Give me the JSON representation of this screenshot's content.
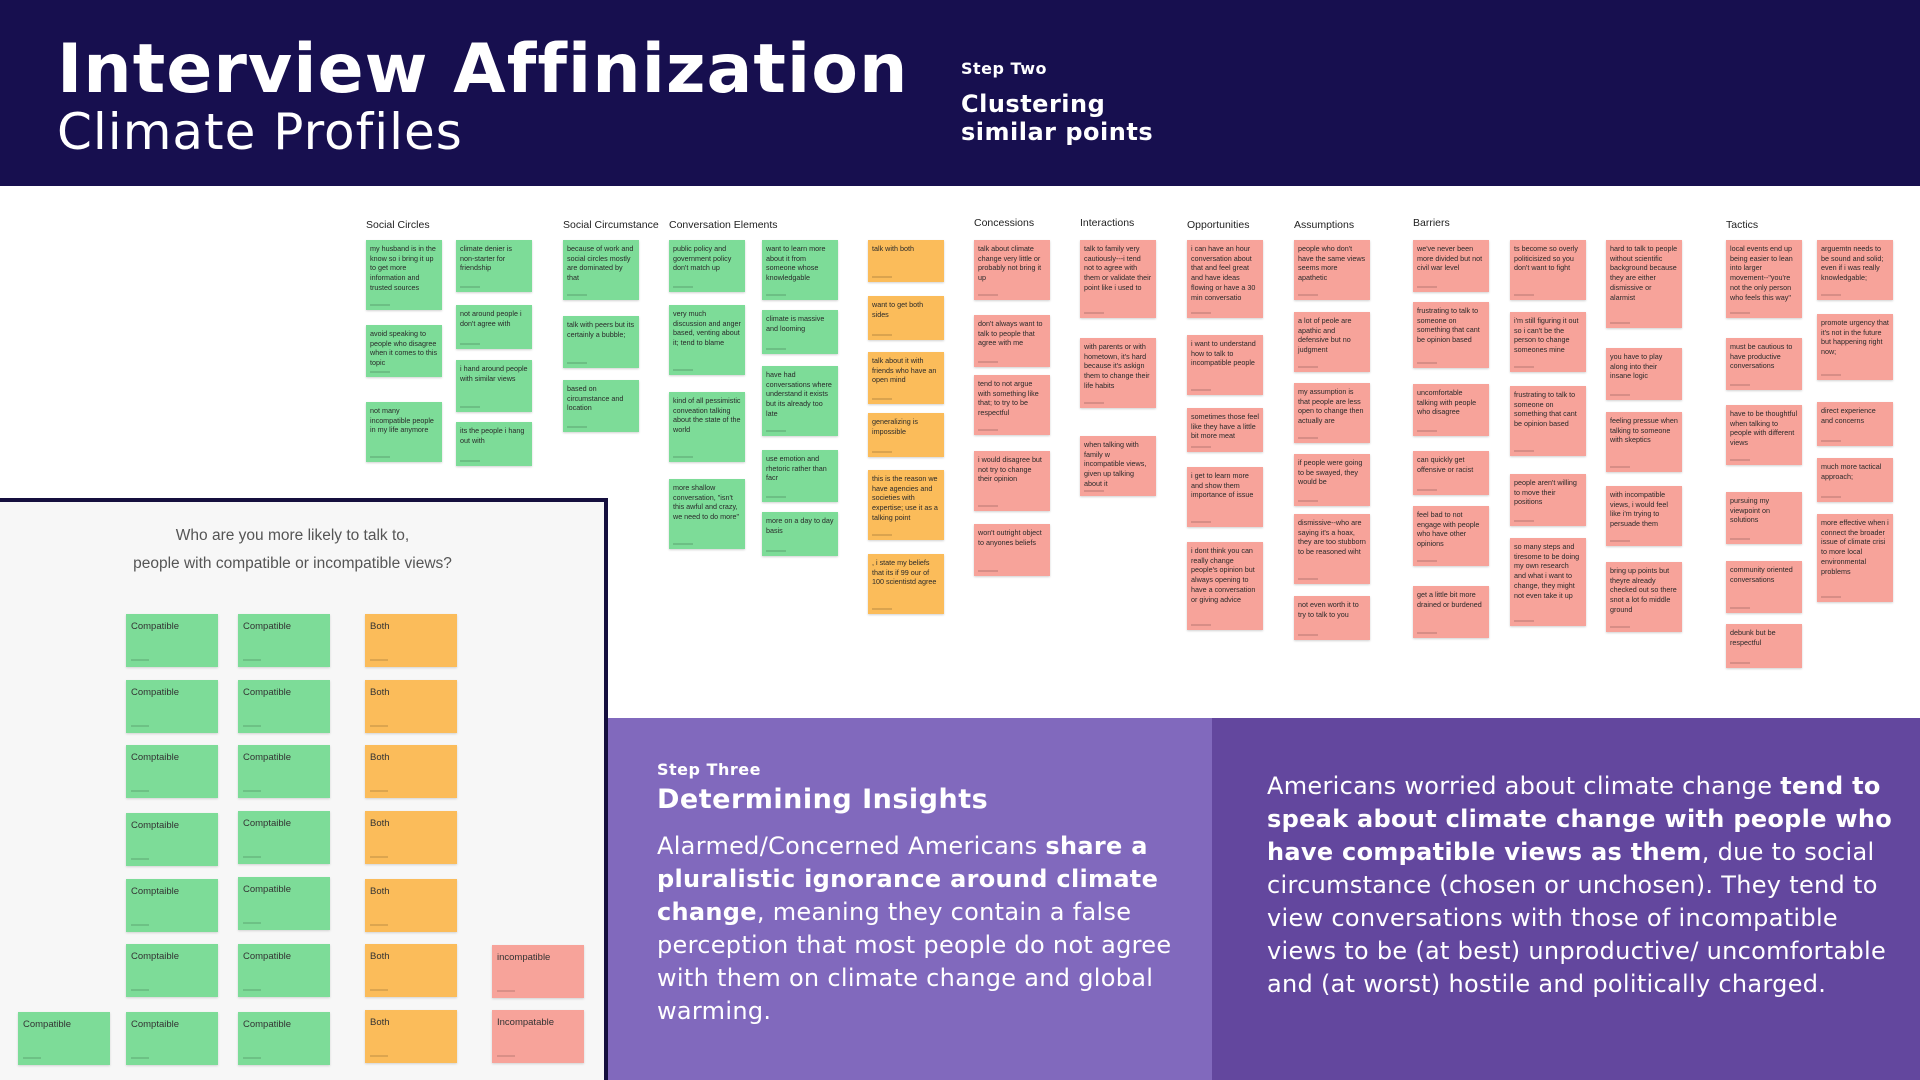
{
  "header": {
    "title": "Interview Affinization",
    "subtitle": "Climate Profiles",
    "step_label": "Step Two",
    "step_title_line1": "Clustering",
    "step_title_line2": "similar points"
  },
  "board": {
    "categories": {
      "social_circles": "Social Circles",
      "social_circumstance": "Social Circumstance",
      "conversation_elements": "Conversation Elements",
      "concessions": "Concessions",
      "interactions": "Interactions",
      "opportunities": "Opportunities",
      "assumptions": "Assumptions",
      "barriers": "Barriers",
      "tactics": "Tactics"
    },
    "notes": {
      "sc1": "my husband is in the know so i bring it up to get more information and trusted sources",
      "sc2": "avoid speaking to people who disagree when it comes to this topic",
      "sc3": "not many incompatible people in my life anymore",
      "sc4": "climate denier is non-starter for friendship",
      "sc5": "not around people i don't agree with",
      "sc6": "i hand around people with similar views",
      "sc7": "its the people i hang out with",
      "scx1": "because of work and social circles mostly are dominated by that",
      "scx2": "talk with peers but its certainly a bubble;",
      "scx3": "based on circumstance and location",
      "ce1": "public policy and government policy don't match up",
      "ce2": "very much discussion and anger based, venting about it; tend to blame",
      "ce3": "kind of all pessimistic conveation talking about the state of the world",
      "ce4": "more shallow conversation, \"isn't this awful and crazy, we need to do more\"",
      "ce5": "want to learn more about it from someone whose knowledgable",
      "ce6": "climate is massive and looming",
      "ce7": "have had conversations where understand it exists but its already too late",
      "ce8": "use emotion and rhetoric rather than facr",
      "ce9": "more on a day to day basis",
      "o1": "talk with both",
      "o2": "want to get both sides",
      "o3": "talk about it with friends who have an open mind",
      "o4": "generalizing is impossible",
      "o5": "this is the reason we have agencies and societies with expertise; use it as a talking point",
      "o6": ", i state my beliefs that its if 99 our of 100 scientistd agree",
      "co1": "talk about climate change very little or probably not bring it up",
      "co2": "don't always want to talk to people that agree with me",
      "co3": "tend to not argue with something like that; to try to be respectful",
      "co4": "i would disagree but not try to change their opinion",
      "co5": "won't outright object to anyones beliefs",
      "in1": "talk to family very cautiously---i tend not to agree with them or validate their point like i used to",
      "in2": "with parents or with hometown, it's hard because it's askign them to change their life habits",
      "in3": "when talking with family w incompatible views, given up talking about it",
      "op1": "i can have an hour conversation about that and feel great and have ideas flowing or have a 30 min conversatio",
      "op2": "i want to understand how to talk to incompatible people",
      "op3": "sometimes those feel like they have a little bit more meat",
      "op4": "i get to learn more and show them importance of issue",
      "op5": "i dont think you can really change people's opinion but always opening to have a conversation or giving advice",
      "as1": "people who don't have the same views seems more apathetic",
      "as2": "a lot of peole are apathic and defensive but no judgment",
      "as3": "my assumption is that people are less open to change then actually are",
      "as4": "if people were going to be swayed, they would be",
      "as5": "dismissive--who are saying it's a hoax, they are too stubborn to be reasoned wiht",
      "as6": "not even worth it to try to talk to you",
      "ba1": "we've never been more divided but not civil war level",
      "ba2": "frustrating to talk to someone on something that cant be opinion based",
      "ba3": "uncomfortable talking with people who disagree",
      "ba4": "can quickly get offensive or racist",
      "ba5": "feel bad to not engage with people who have other opinions",
      "ba6": "get a little bit more drained or burdened",
      "ba7": "ts become so overly politicisized so you don't want to fight",
      "ba8": "i'm still figuring it out so i can't be the person to change someones mine",
      "ba9": "frustrating to talk to someone on something that cant be opinion based",
      "ba10": "people aren't willing to move their positions",
      "ba11": "so many steps and tiresome to be doing my own research and what i want to change, they might not even take it up",
      "ba12": "hard to talk to people without scientific background because they are either dismissive or alarmist",
      "ba13": "you have to play along into their insane logic",
      "ba14": "feeling pressue when talking to someone with skeptics",
      "ba15": "with incompatible views, i would feel like i'm trying to persuade them",
      "ba16": "bring up points but theyre already checked out so there snot a lot fo middle ground",
      "ta1": "local events end up being easier to lean into larger movement--\"you're not the only person who feels this way\"",
      "ta2": "must be cautious to have productive conversations",
      "ta3": "have to be thoughtful when talking to people with different views",
      "ta4": "pursuing my viewpoint on solutions",
      "ta5": "community oriented conversations",
      "ta6": "debunk but be respectful",
      "ta7": "arguemtn needs to be sound and solid; even if i was really knowledgable;",
      "ta8": "promote urgency that it's not in the future but happening right now;",
      "ta9": "direct experience and concerns",
      "ta10": "much more tactical approach;",
      "ta11": "more effective when i connect the broader issue of climate crisi to more local environmental problems"
    }
  },
  "poll": {
    "question_line1": "Who are you more likely to talk to,",
    "question_line2": "people with compatible or incompatible views?",
    "col1": [
      "Compatible",
      "Compatible",
      "Comptaible",
      "Comptaible",
      "Comptaible",
      "Comptaible",
      "Comptaible"
    ],
    "col2": [
      "Compatible",
      "Compatible",
      "Compatible",
      "Comptaible",
      "Compatible",
      "Compatible",
      "Compatible"
    ],
    "col3": [
      "Both",
      "Both",
      "Both",
      "Both",
      "Both",
      "Both",
      "Both"
    ],
    "col4": [
      "incompatible",
      "Incompatable"
    ],
    "extra": "Compatible"
  },
  "step3": {
    "label": "Step Three",
    "title": "Determining Insights",
    "p1": "Alarmed/Concerned Americans ",
    "b1": "share a pluralistic ignorance around climate change",
    "p2": ", meaning they contain a false perception that most people do not agree with them on climate change and global warming."
  },
  "insight": {
    "p1": "Americans worried about climate change ",
    "b1": "tend to speak about climate change with people who have compatible views as them",
    "p2": ", due to social circumstance (chosen or unchosen). They tend to view conversations with those of incompatible views to be (at best) unproductive/ uncomfortable and (at worst) hostile and politically charged."
  },
  "colors": {
    "header_bg": "#170f4f",
    "step3_bg": "#8169bd",
    "insight_bg": "#63479e",
    "note_green": "#7ddc98",
    "note_orange": "#fbbc5a",
    "note_pink": "#f7a39a"
  }
}
